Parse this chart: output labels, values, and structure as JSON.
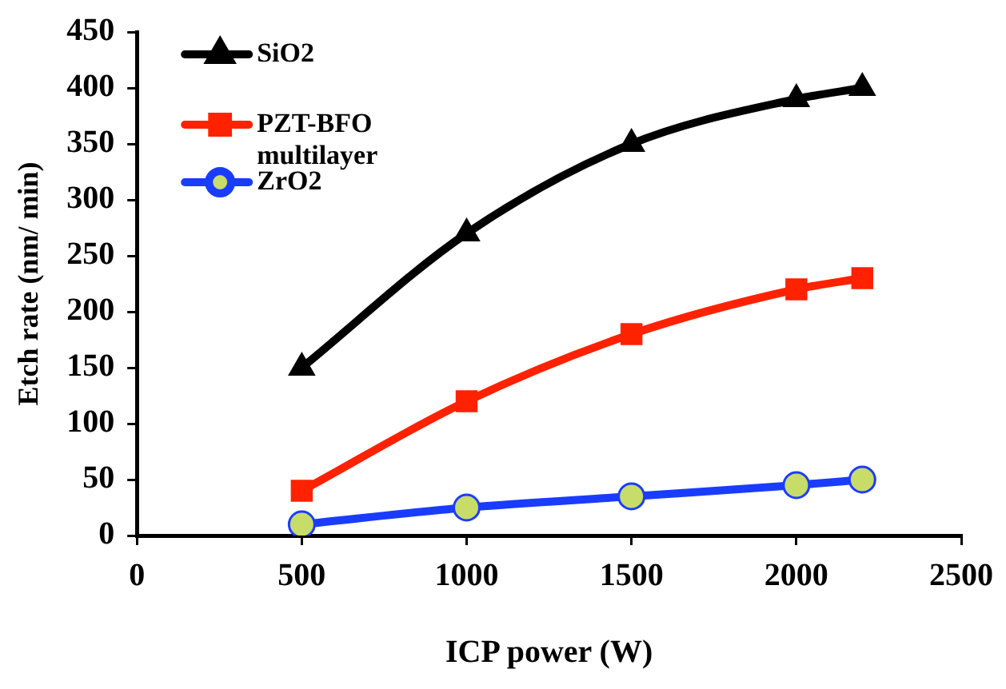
{
  "chart_data": {
    "type": "line",
    "xlabel": "ICP power (W)",
    "ylabel": "Etch rate (nm/ min)",
    "x": [
      500,
      1000,
      1500,
      2000,
      2200
    ],
    "series": [
      {
        "name": "SiO2",
        "color": "#000000",
        "marker": "triangle",
        "values": [
          150,
          270,
          350,
          390,
          400
        ]
      },
      {
        "name": "PZT-BFO multilayer",
        "color": "#ff2200",
        "marker": "square",
        "values": [
          40,
          120,
          180,
          220,
          230
        ]
      },
      {
        "name": "ZrO2",
        "color": "#1a3cff",
        "marker": "circle",
        "values": [
          10,
          25,
          35,
          45,
          50
        ]
      }
    ],
    "xlim": [
      0,
      2500
    ],
    "xticks": [
      0,
      500,
      1000,
      1500,
      2000,
      2500
    ],
    "ylim": [
      0,
      450
    ],
    "yticks": [
      0,
      50,
      100,
      150,
      200,
      250,
      300,
      350,
      400,
      450
    ],
    "grid": false,
    "legend": "top left"
  }
}
